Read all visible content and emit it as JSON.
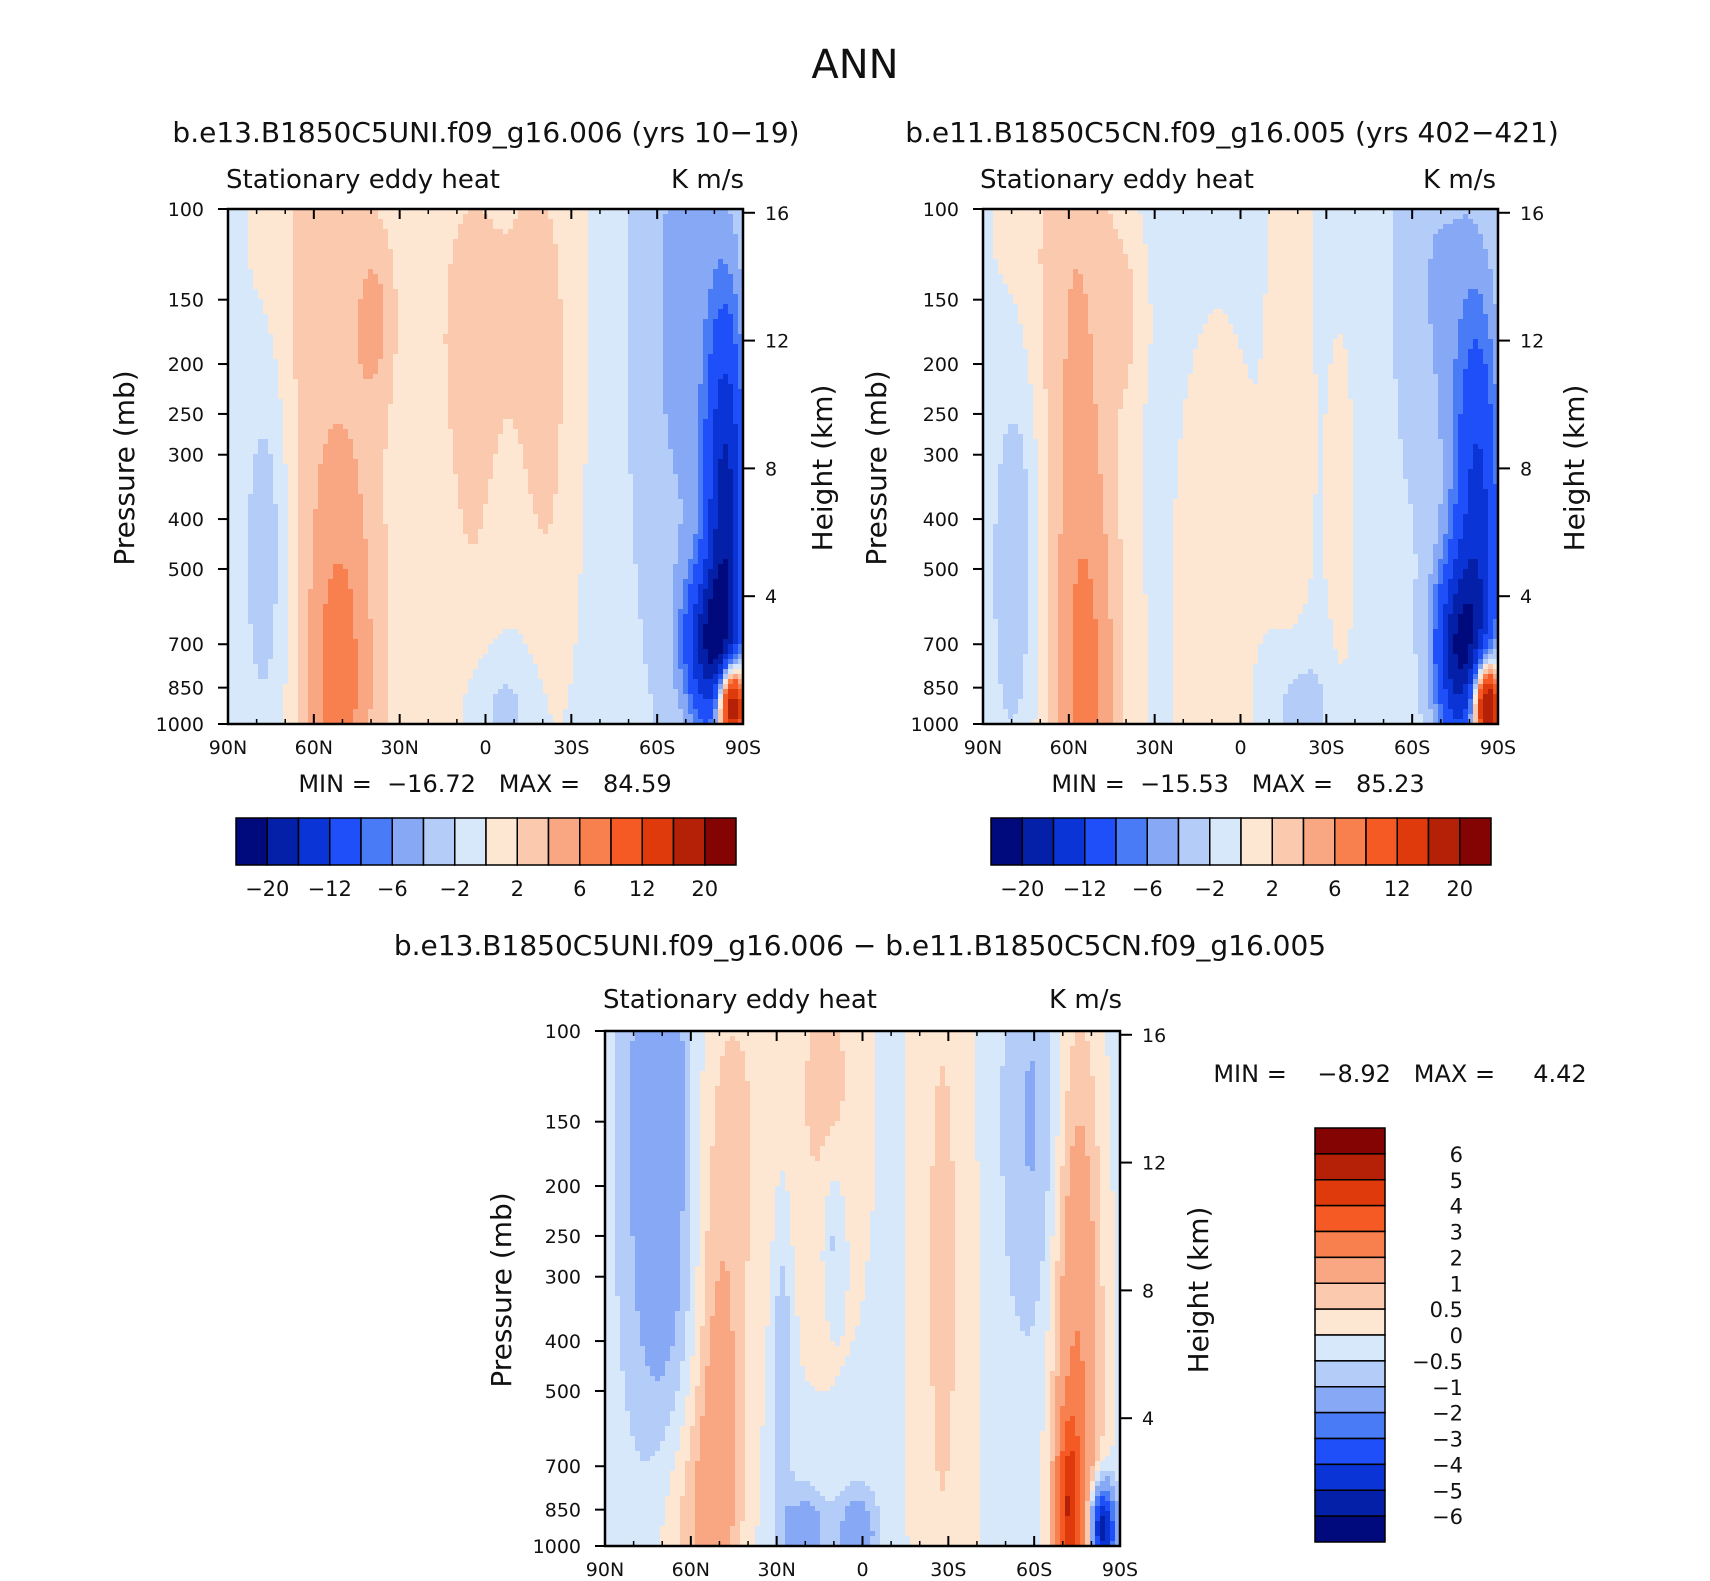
{
  "figure": {
    "title": "ANN",
    "diff_title": "b.e13.B1850C5UNI.f09_g16.006 − b.e11.B1850C5CN.f09_g16.005"
  },
  "palette": {
    "blues": [
      "#000a7d",
      "#0520a8",
      "#0a34d6",
      "#1e4ff8",
      "#4a7bf7",
      "#86a8f5",
      "#b3cdf8",
      "#d8e8fb"
    ],
    "reds": [
      "#fde7d3",
      "#fbc9ad",
      "#f9a683",
      "#f8804f",
      "#f55a25",
      "#de3a0b",
      "#b52107",
      "#830402"
    ],
    "frame": "#000000"
  },
  "chart_data": [
    {
      "type": "heatmap",
      "id": "left",
      "title": "b.e13.B1850C5UNI.f09_g16.006 (yrs 10−19)",
      "left_string": "Stationary eddy heat",
      "right_string": "K m/s",
      "xlabel": "",
      "ylabel": "Pressure (mb)",
      "y2label": "Height (km)",
      "x_range": [
        90,
        -90
      ],
      "x_ticks": [
        90,
        60,
        30,
        0,
        -30,
        -60,
        -90
      ],
      "x_tick_labels": [
        "90N",
        "60N",
        "30N",
        "0",
        "30S",
        "60S",
        "90S"
      ],
      "y_range": [
        100,
        1000
      ],
      "y_scale": "log",
      "y_ticks": [
        100,
        150,
        200,
        250,
        300,
        400,
        500,
        700,
        850,
        1000
      ],
      "y_tick_labels": [
        "100",
        "150",
        "200",
        "250",
        "300",
        "400",
        "500",
        "700",
        "850",
        "1000"
      ],
      "y2_ticks_km": [
        16,
        12,
        8,
        4
      ],
      "y2_tick_labels": [
        "16",
        "12",
        "8",
        "4"
      ],
      "stats": "MIN =  −16.72   MAX =   84.59",
      "levels": [
        -20,
        -16,
        -12,
        -8,
        -6,
        -4,
        -2,
        0,
        2,
        4,
        6,
        8,
        12,
        16,
        20
      ],
      "colorbar_labels": [
        "−20",
        "−12",
        "−6",
        "−2",
        "2",
        "6",
        "12",
        "20"
      ],
      "colorbar_orientation": "horizontal",
      "background_value": -1,
      "features": [
        {
          "lat": 48,
          "p": 420,
          "wlat": 14,
          "wlogp": 0.75,
          "amp": 4.0
        },
        {
          "lat": 52,
          "p": 900,
          "wlat": 9,
          "wlogp": 0.28,
          "amp": 4.5
        },
        {
          "lat": 70,
          "p": 150,
          "wlat": 12,
          "wlogp": 0.4,
          "amp": 2.2
        },
        {
          "lat": 38,
          "p": 160,
          "wlat": 5,
          "wlogp": 0.12,
          "amp": 3.0
        },
        {
          "lat": 76,
          "p": 400,
          "wlat": 6,
          "wlogp": 0.28,
          "amp": -3.5
        },
        {
          "lat": 5,
          "p": 520,
          "wlat": 10,
          "wlogp": 0.55,
          "amp": 2.5
        },
        {
          "lat": -15,
          "p": 130,
          "wlat": 14,
          "wlogp": 0.35,
          "amp": 2.4
        },
        {
          "lat": -22,
          "p": 380,
          "wlat": 8,
          "wlogp": 0.45,
          "amp": 2.2
        },
        {
          "lat": 10,
          "p": 150,
          "wlat": 9,
          "wlogp": 0.25,
          "amp": 1.6
        },
        {
          "lat": -5,
          "p": 950,
          "wlat": 10,
          "wlogp": 0.1,
          "amp": -3.0
        },
        {
          "lat": -68,
          "p": 160,
          "wlat": 12,
          "wlogp": 0.55,
          "amp": -3.5
        },
        {
          "lat": -84,
          "p": 420,
          "wlat": 5,
          "wlogp": 0.3,
          "amp": -16.0
        },
        {
          "lat": -78,
          "p": 700,
          "wlat": 6,
          "wlogp": 0.1,
          "amp": -14.0
        },
        {
          "lat": -86,
          "p": 920,
          "wlat": 3.5,
          "wlogp": 0.06,
          "amp": 30.0
        }
      ]
    },
    {
      "type": "heatmap",
      "id": "right",
      "title": "b.e11.B1850C5CN.f09_g16.005 (yrs 402−421)",
      "left_string": "Stationary eddy heat",
      "right_string": "K m/s",
      "xlabel": "",
      "ylabel": "Pressure (mb)",
      "y2label": "Height (km)",
      "x_range": [
        90,
        -90
      ],
      "x_ticks": [
        90,
        60,
        30,
        0,
        -30,
        -60,
        -90
      ],
      "x_tick_labels": [
        "90N",
        "60N",
        "30N",
        "0",
        "30S",
        "60S",
        "90S"
      ],
      "y_range": [
        100,
        1000
      ],
      "y_scale": "log",
      "y_ticks": [
        100,
        150,
        200,
        250,
        300,
        400,
        500,
        700,
        850,
        1000
      ],
      "y_tick_labels": [
        "100",
        "150",
        "200",
        "250",
        "300",
        "400",
        "500",
        "700",
        "850",
        "1000"
      ],
      "y2_ticks_km": [
        16,
        12,
        8,
        4
      ],
      "y2_tick_labels": [
        "16",
        "12",
        "8",
        "4"
      ],
      "stats": "MIN =  −15.53   MAX =   85.23",
      "levels": [
        -20,
        -16,
        -12,
        -8,
        -6,
        -4,
        -2,
        0,
        2,
        4,
        6,
        8,
        12,
        16,
        20
      ],
      "colorbar_labels": [
        "−20",
        "−12",
        "−6",
        "−2",
        "2",
        "6",
        "12",
        "20"
      ],
      "colorbar_orientation": "horizontal",
      "background_value": -1,
      "features": [
        {
          "lat": 55,
          "p": 300,
          "wlat": 10,
          "wlogp": 0.9,
          "amp": 4.2
        },
        {
          "lat": 54,
          "p": 900,
          "wlat": 10,
          "wlogp": 0.3,
          "amp": 4.0
        },
        {
          "lat": 72,
          "p": 140,
          "wlat": 14,
          "wlogp": 0.35,
          "amp": 2.0
        },
        {
          "lat": 40,
          "p": 160,
          "wlat": 5,
          "wlogp": 0.12,
          "amp": 2.5
        },
        {
          "lat": 78,
          "p": 420,
          "wlat": 6,
          "wlogp": 0.28,
          "amp": -3.5
        },
        {
          "lat": 8,
          "p": 600,
          "wlat": 12,
          "wlogp": 0.45,
          "amp": 2.3
        },
        {
          "lat": -18,
          "p": 200,
          "wlat": 6,
          "wlogp": 0.6,
          "amp": 2.2
        },
        {
          "lat": -35,
          "p": 400,
          "wlat": 4,
          "wlogp": 0.3,
          "amp": 2.0
        },
        {
          "lat": -20,
          "p": 950,
          "wlat": 8,
          "wlogp": 0.1,
          "amp": -3.0
        },
        {
          "lat": -68,
          "p": 140,
          "wlat": 10,
          "wlogp": 0.35,
          "amp": -3.0
        },
        {
          "lat": -83,
          "p": 430,
          "wlat": 6,
          "wlogp": 0.32,
          "amp": -12.0
        },
        {
          "lat": -76,
          "p": 720,
          "wlat": 6,
          "wlogp": 0.12,
          "amp": -15.0
        },
        {
          "lat": -86,
          "p": 920,
          "wlat": 3.5,
          "wlogp": 0.06,
          "amp": 30.0
        }
      ]
    },
    {
      "type": "heatmap",
      "id": "diff",
      "title": "",
      "left_string": "Stationary eddy heat",
      "right_string": "K m/s",
      "xlabel": "",
      "ylabel": "Pressure (mb)",
      "y2label": "Height (km)",
      "x_range": [
        90,
        -90
      ],
      "x_ticks": [
        90,
        60,
        30,
        0,
        -30,
        -60,
        -90
      ],
      "x_tick_labels": [
        "90N",
        "60N",
        "30N",
        "0",
        "30S",
        "60S",
        "90S"
      ],
      "y_range": [
        100,
        1000
      ],
      "y_scale": "log",
      "y_ticks": [
        100,
        150,
        200,
        250,
        300,
        400,
        500,
        700,
        850,
        1000
      ],
      "y_tick_labels": [
        "100",
        "150",
        "200",
        "250",
        "300",
        "400",
        "500",
        "700",
        "850",
        "1000"
      ],
      "y2_ticks_km": [
        16,
        12,
        8,
        4
      ],
      "y2_tick_labels": [
        "16",
        "12",
        "8",
        "4"
      ],
      "stats": "MIN =    −8.92   MAX =     4.42",
      "levels": [
        -6,
        -5,
        -4,
        -3,
        -2,
        -1,
        -0.5,
        0,
        0.5,
        1,
        2,
        3,
        4,
        5,
        6
      ],
      "colorbar_labels": [
        "6",
        "5",
        "4",
        "3",
        "2",
        "1",
        "0.5",
        "0",
        "−0.5",
        "−1",
        "−2",
        "−3",
        "−4",
        "−5",
        "−6"
      ],
      "colorbar_orientation": "vertical",
      "background_value": -0.2,
      "features": [
        {
          "lat": 70,
          "p": 160,
          "wlat": 9,
          "wlogp": 0.45,
          "amp": -1.8
        },
        {
          "lat": 48,
          "p": 150,
          "wlat": 14,
          "wlogp": 0.35,
          "amp": 0.8
        },
        {
          "lat": 12,
          "p": 130,
          "wlat": 10,
          "wlogp": 0.35,
          "amp": 0.8
        },
        {
          "lat": -28,
          "p": 300,
          "wlat": 8,
          "wlogp": 0.8,
          "amp": 0.8
        },
        {
          "lat": 50,
          "p": 600,
          "wlat": 6,
          "wlogp": 0.3,
          "amp": 1.3
        },
        {
          "lat": 60,
          "p": 900,
          "wlat": 10,
          "wlogp": 0.18,
          "amp": 1.0
        },
        {
          "lat": 10,
          "p": 250,
          "wlat": 3,
          "wlogp": 0.1,
          "amp": -0.9
        },
        {
          "lat": 28,
          "p": 450,
          "wlat": 2.5,
          "wlogp": 0.25,
          "amp": -0.9
        },
        {
          "lat": 20,
          "p": 950,
          "wlat": 5,
          "wlogp": 0.06,
          "amp": -1.5
        },
        {
          "lat": 2,
          "p": 950,
          "wlat": 5,
          "wlogp": 0.06,
          "amp": -1.5
        },
        {
          "lat": -60,
          "p": 150,
          "wlat": 8,
          "wlogp": 0.3,
          "amp": -0.9
        },
        {
          "lat": -75,
          "p": 500,
          "wlat": 6,
          "wlogp": 0.5,
          "amp": 2.3
        },
        {
          "lat": -72,
          "p": 850,
          "wlat": 3,
          "wlogp": 0.12,
          "amp": 3.5
        },
        {
          "lat": -84,
          "p": 930,
          "wlat": 3,
          "wlogp": 0.06,
          "amp": -6.0
        }
      ]
    }
  ]
}
